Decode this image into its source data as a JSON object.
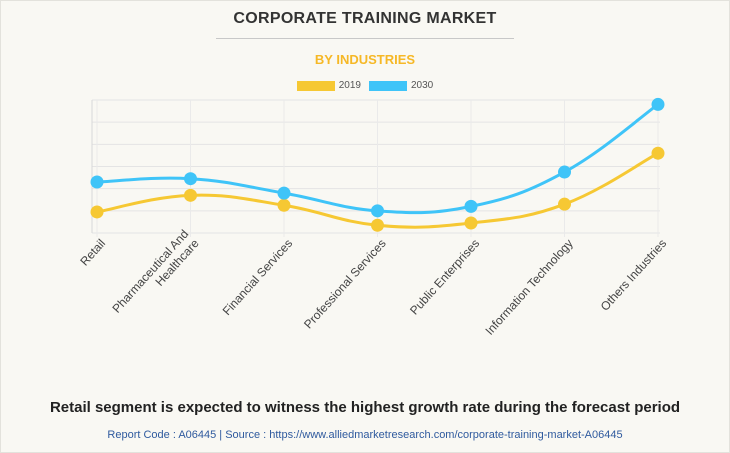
{
  "header": {
    "title": "CORPORATE TRAINING MARKET",
    "subtitle": "BY INDUSTRIES"
  },
  "footer": {
    "headline": "Retail segment is expected to witness the highest growth rate during the forecast period",
    "source": "Report Code : A06445  |  Source : https://www.alliedmarketresearch.com/corporate-training-market-A06445"
  },
  "colors": {
    "series_2019": "#f6c833",
    "series_2030": "#3fc4f8",
    "title": "#333333",
    "subtitle": "#f6b826",
    "source": "#2f5a9e"
  },
  "chart_data": {
    "type": "line",
    "title": "CORPORATE TRAINING MARKET",
    "subtitle": "BY INDUSTRIES",
    "xlabel": "",
    "ylabel": "",
    "ylim": [
      0,
      6
    ],
    "grid": true,
    "legend_position": "top-center",
    "categories": [
      "Retail",
      "Pharmaceutical And Healthcare",
      "Financial Services",
      "Professional Services",
      "Public Enterprises",
      "Information Technology",
      "Others Industries"
    ],
    "category_lines": [
      [
        "Retail"
      ],
      [
        "Pharmaceutical And",
        "Healthcare"
      ],
      [
        "Financial Services"
      ],
      [
        "Professional Services"
      ],
      [
        "Public Enterprises"
      ],
      [
        "Information Technology"
      ],
      [
        "Others Industries"
      ]
    ],
    "series": [
      {
        "name": "2019",
        "color": "#f6c833",
        "values": [
          0.95,
          1.7,
          1.25,
          0.35,
          0.45,
          1.3,
          3.6
        ]
      },
      {
        "name": "2030",
        "color": "#3fc4f8",
        "values": [
          2.3,
          2.45,
          1.8,
          1.0,
          1.2,
          2.75,
          5.8
        ]
      }
    ]
  }
}
